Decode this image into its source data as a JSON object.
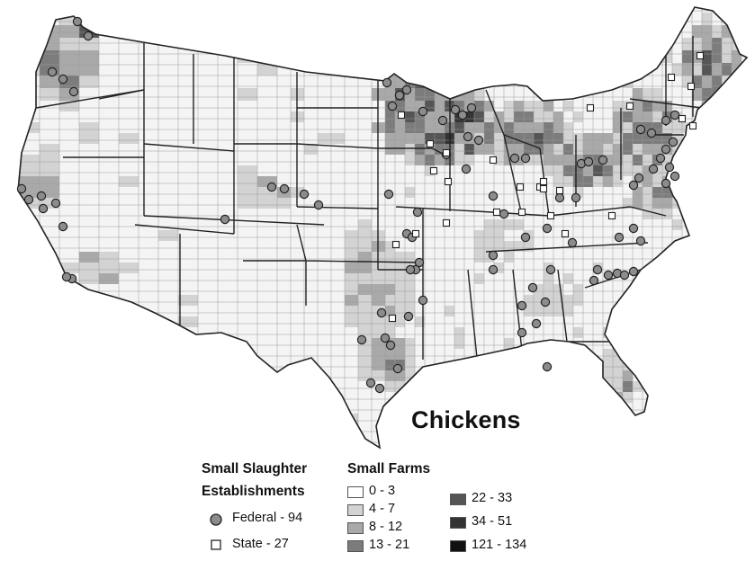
{
  "title": "Chickens",
  "establishments_legend": {
    "heading_line1": "Small Slaughter",
    "heading_line2": "Establishments",
    "items": [
      {
        "label": "Federal - 94",
        "marker": "circle",
        "color": "#8c8c8c"
      },
      {
        "label": "State - 27",
        "marker": "square",
        "color": "#ffffff"
      }
    ]
  },
  "farms_legend": {
    "heading": "Small Farms",
    "classes": [
      {
        "range": "0 - 3",
        "color": "#ffffff"
      },
      {
        "range": "4 - 7",
        "color": "#d3d3d3"
      },
      {
        "range": "8 - 12",
        "color": "#a9a9a9"
      },
      {
        "range": "13 - 21",
        "color": "#7c7c7c"
      },
      {
        "range": "22 - 33",
        "color": "#555555"
      },
      {
        "range": "34 - 51",
        "color": "#333333"
      },
      {
        "range": "121 - 134",
        "color": "#111111"
      }
    ]
  },
  "colors": {
    "land_base": "#f4f4f4",
    "county_lines": "#9a9a9a",
    "state_lines": "#222222",
    "federal_marker": "#8c8c8c",
    "state_marker": "#ffffff"
  }
}
